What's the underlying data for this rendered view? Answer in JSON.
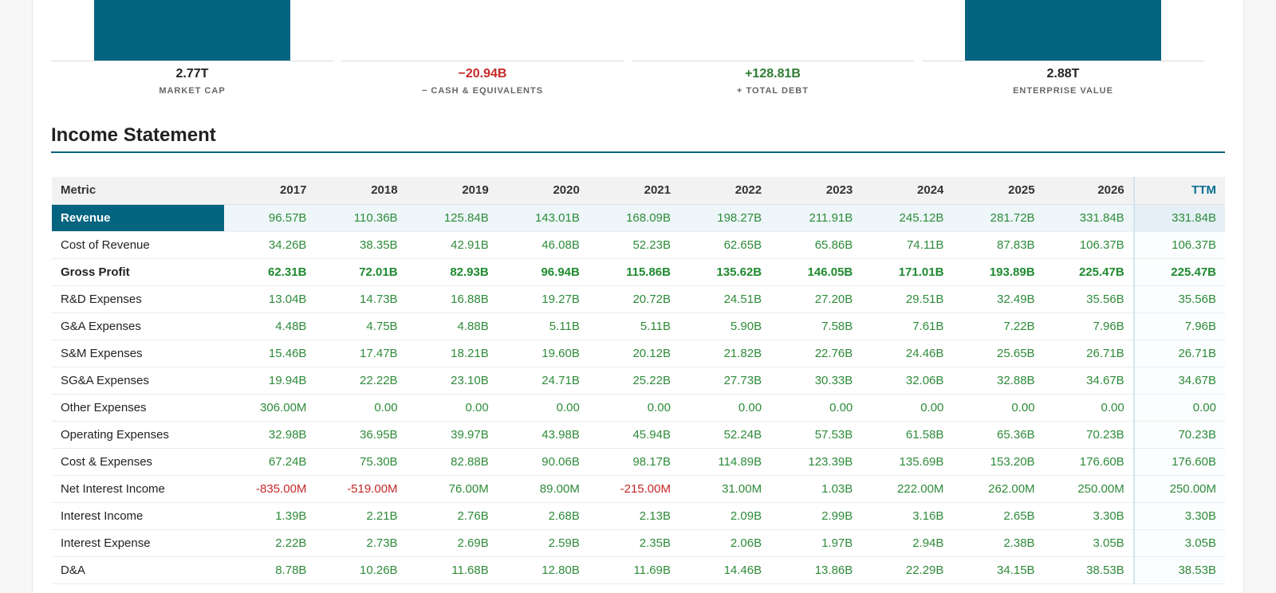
{
  "bridge": [
    {
      "value": "2.77T",
      "label": "MARKET CAP",
      "bar_fraction": 0.96,
      "tone": "neutral"
    },
    {
      "value": "−20.94B",
      "label": "− CASH & EQUIVALENTS",
      "bar_fraction": 0,
      "tone": "negative"
    },
    {
      "value": "+128.81B",
      "label": "+ TOTAL DEBT",
      "bar_fraction": 0,
      "tone": "positive"
    },
    {
      "value": "2.88T",
      "label": "ENTERPRISE VALUE",
      "bar_fraction": 1.0,
      "tone": "neutral"
    }
  ],
  "section_title": "Income Statement",
  "table": {
    "headers": [
      "Metric",
      "2017",
      "2018",
      "2019",
      "2020",
      "2021",
      "2022",
      "2023",
      "2024",
      "2025",
      "2026",
      "TTM"
    ],
    "rows": [
      {
        "label": "Revenue",
        "values": [
          "96.57B",
          "110.36B",
          "125.84B",
          "143.01B",
          "168.09B",
          "198.27B",
          "211.91B",
          "245.12B",
          "281.72B",
          "331.84B",
          "331.84B"
        ],
        "highlight": true
      },
      {
        "label": "Cost of Revenue",
        "values": [
          "34.26B",
          "38.35B",
          "42.91B",
          "46.08B",
          "52.23B",
          "62.65B",
          "65.86B",
          "74.11B",
          "87.83B",
          "106.37B",
          "106.37B"
        ]
      },
      {
        "label": "Gross Profit",
        "values": [
          "62.31B",
          "72.01B",
          "82.93B",
          "96.94B",
          "115.86B",
          "135.62B",
          "146.05B",
          "171.01B",
          "193.89B",
          "225.47B",
          "225.47B"
        ],
        "bold": true
      },
      {
        "label": "R&D Expenses",
        "values": [
          "13.04B",
          "14.73B",
          "16.88B",
          "19.27B",
          "20.72B",
          "24.51B",
          "27.20B",
          "29.51B",
          "32.49B",
          "35.56B",
          "35.56B"
        ]
      },
      {
        "label": "G&A Expenses",
        "values": [
          "4.48B",
          "4.75B",
          "4.88B",
          "5.11B",
          "5.11B",
          "5.90B",
          "7.58B",
          "7.61B",
          "7.22B",
          "7.96B",
          "7.96B"
        ]
      },
      {
        "label": "S&M Expenses",
        "values": [
          "15.46B",
          "17.47B",
          "18.21B",
          "19.60B",
          "20.12B",
          "21.82B",
          "22.76B",
          "24.46B",
          "25.65B",
          "26.71B",
          "26.71B"
        ]
      },
      {
        "label": "SG&A Expenses",
        "values": [
          "19.94B",
          "22.22B",
          "23.10B",
          "24.71B",
          "25.22B",
          "27.73B",
          "30.33B",
          "32.06B",
          "32.88B",
          "34.67B",
          "34.67B"
        ]
      },
      {
        "label": "Other Expenses",
        "values": [
          "306.00M",
          "0.00",
          "0.00",
          "0.00",
          "0.00",
          "0.00",
          "0.00",
          "0.00",
          "0.00",
          "0.00",
          "0.00"
        ]
      },
      {
        "label": "Operating Expenses",
        "values": [
          "32.98B",
          "36.95B",
          "39.97B",
          "43.98B",
          "45.94B",
          "52.24B",
          "57.53B",
          "61.58B",
          "65.36B",
          "70.23B",
          "70.23B"
        ]
      },
      {
        "label": "Cost & Expenses",
        "values": [
          "67.24B",
          "75.30B",
          "82.88B",
          "90.06B",
          "98.17B",
          "114.89B",
          "123.39B",
          "135.69B",
          "153.20B",
          "176.60B",
          "176.60B"
        ]
      },
      {
        "label": "Net Interest Income",
        "values": [
          "-835.00M",
          "-519.00M",
          "76.00M",
          "89.00M",
          "-215.00M",
          "31.00M",
          "1.03B",
          "222.00M",
          "262.00M",
          "250.00M",
          "250.00M"
        ]
      },
      {
        "label": "Interest Income",
        "values": [
          "1.39B",
          "2.21B",
          "2.76B",
          "2.68B",
          "2.13B",
          "2.09B",
          "2.99B",
          "3.16B",
          "2.65B",
          "3.30B",
          "3.30B"
        ]
      },
      {
        "label": "Interest Expense",
        "values": [
          "2.22B",
          "2.73B",
          "2.69B",
          "2.59B",
          "2.35B",
          "2.06B",
          "1.97B",
          "2.94B",
          "2.38B",
          "3.05B",
          "3.05B"
        ]
      },
      {
        "label": "D&A",
        "values": [
          "8.78B",
          "10.26B",
          "11.68B",
          "12.80B",
          "11.69B",
          "14.46B",
          "13.86B",
          "22.29B",
          "34.15B",
          "38.53B",
          "38.53B"
        ]
      }
    ]
  }
}
